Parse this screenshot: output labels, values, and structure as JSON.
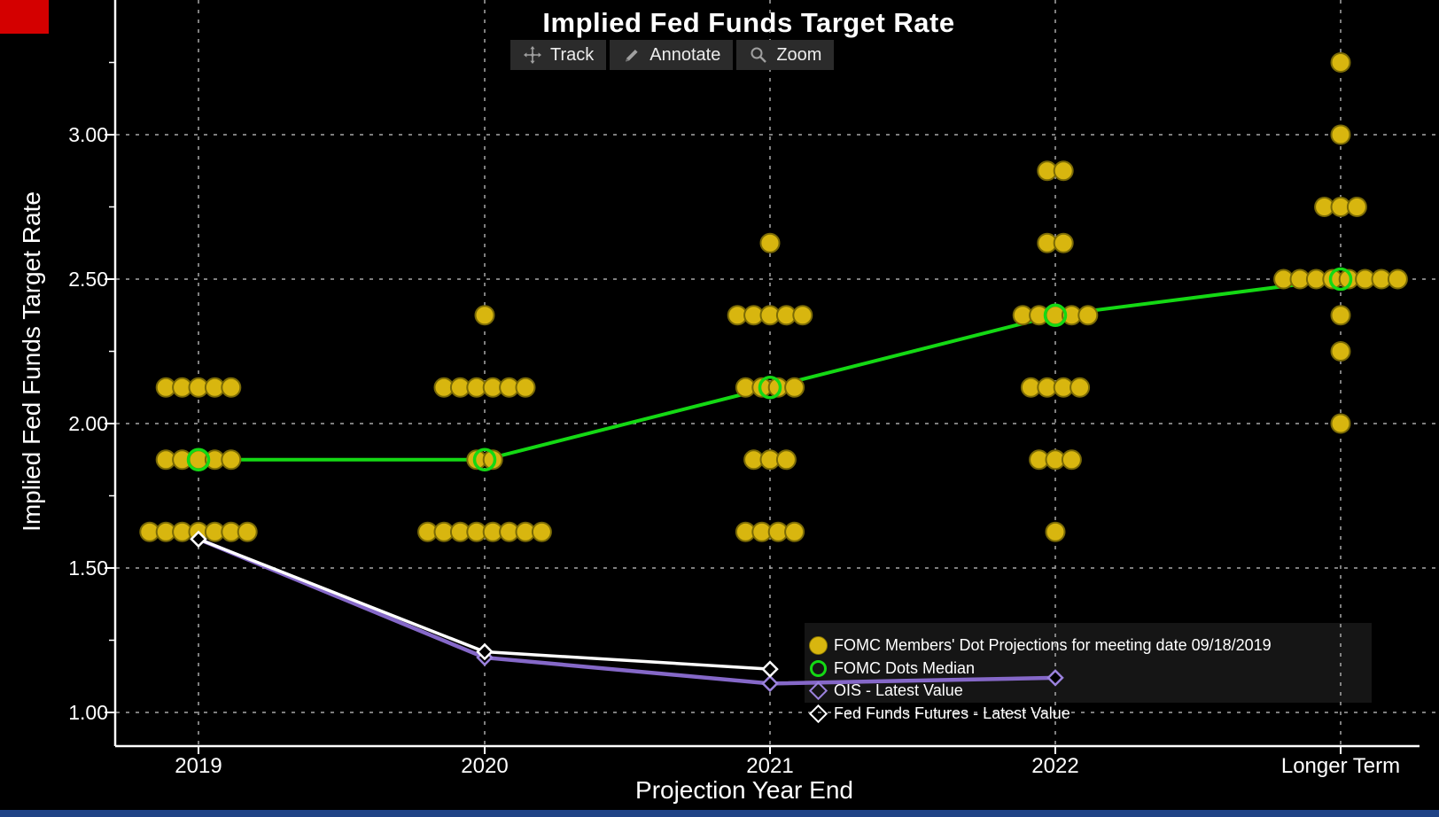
{
  "title": "Implied Fed Funds Target Rate",
  "toolbar": {
    "track_label": "Track",
    "annotate_label": "Annotate",
    "zoom_label": "Zoom",
    "icons": {
      "track": "crosshair-move",
      "annotate": "pencil",
      "zoom": "magnifier"
    }
  },
  "colors": {
    "background": "#000000",
    "dot_yellow": "#d8b60f",
    "median_green": "#14d914",
    "ois_purple": "#8568c8",
    "futures_white": "#ffffff",
    "gridline_gray": "#a8a8a8",
    "axis_white": "#ffffff",
    "toolbar_bg": "#2b2b2b",
    "legend_bg": "#151515",
    "corner_red": "#d40000",
    "bottom_strip_blue": "#1f4386"
  },
  "chart_data": {
    "type": "scatter",
    "title": "Implied Fed Funds Target Rate",
    "xlabel": "Projection Year End",
    "ylabel": "Implied Fed Funds Target Rate",
    "categories": [
      "2019",
      "2020",
      "2021",
      "2022",
      "Longer Term"
    ],
    "ylim": [
      0.88,
      3.47
    ],
    "yticks": [
      {
        "value": 1.0,
        "label": "1.00"
      },
      {
        "value": 1.5,
        "label": "1.50"
      },
      {
        "value": 2.0,
        "label": "2.00"
      },
      {
        "value": 2.5,
        "label": "2.50"
      },
      {
        "value": 3.0,
        "label": "3.00"
      }
    ],
    "yticks_minor": [
      1.25,
      1.75,
      2.25,
      2.75,
      3.25
    ],
    "grid": {
      "style": "dashed",
      "color": "#a8a8a8",
      "vertical": true,
      "horizontal": true
    },
    "legend_position": "lower-right",
    "series": [
      {
        "name": "FOMC Members' Dot Projections for meeting date 09/18/2019",
        "type": "dots",
        "marker": "filled-circle",
        "color": "#d8b60f",
        "points": [
          {
            "category": "2019",
            "rate": 2.125,
            "count": 5
          },
          {
            "category": "2019",
            "rate": 1.875,
            "count": 5
          },
          {
            "category": "2019",
            "rate": 1.625,
            "count": 7
          },
          {
            "category": "2020",
            "rate": 2.375,
            "count": 1
          },
          {
            "category": "2020",
            "rate": 2.125,
            "count": 6
          },
          {
            "category": "2020",
            "rate": 1.875,
            "count": 2
          },
          {
            "category": "2020",
            "rate": 1.625,
            "count": 8
          },
          {
            "category": "2021",
            "rate": 2.625,
            "count": 1
          },
          {
            "category": "2021",
            "rate": 2.375,
            "count": 5
          },
          {
            "category": "2021",
            "rate": 2.125,
            "count": 4
          },
          {
            "category": "2021",
            "rate": 1.875,
            "count": 3
          },
          {
            "category": "2021",
            "rate": 1.625,
            "count": 4
          },
          {
            "category": "2022",
            "rate": 2.875,
            "count": 2
          },
          {
            "category": "2022",
            "rate": 2.625,
            "count": 2
          },
          {
            "category": "2022",
            "rate": 2.375,
            "count": 5
          },
          {
            "category": "2022",
            "rate": 2.125,
            "count": 4
          },
          {
            "category": "2022",
            "rate": 1.875,
            "count": 3
          },
          {
            "category": "2022",
            "rate": 1.625,
            "count": 1
          },
          {
            "category": "Longer Term",
            "rate": 3.25,
            "count": 1
          },
          {
            "category": "Longer Term",
            "rate": 3.0,
            "count": 1
          },
          {
            "category": "Longer Term",
            "rate": 2.75,
            "count": 3
          },
          {
            "category": "Longer Term",
            "rate": 2.5,
            "count": 8
          },
          {
            "category": "Longer Term",
            "rate": 2.375,
            "count": 1
          },
          {
            "category": "Longer Term",
            "rate": 2.25,
            "count": 1
          },
          {
            "category": "Longer Term",
            "rate": 2.0,
            "count": 1
          }
        ]
      },
      {
        "name": "FOMC Dots Median",
        "type": "line",
        "marker": "open-circle",
        "color": "#14d914",
        "values": [
          1.875,
          1.875,
          2.125,
          2.375,
          2.5
        ]
      },
      {
        "name": "OIS - Latest Value",
        "type": "line",
        "marker": "open-diamond",
        "color": "#8568c8",
        "values": [
          1.6,
          1.19,
          1.1,
          1.12
        ]
      },
      {
        "name": "Fed Funds Futures - Latest Value",
        "type": "line",
        "marker": "open-diamond",
        "color": "#ffffff",
        "values": [
          1.6,
          1.21,
          1.15
        ]
      }
    ]
  }
}
